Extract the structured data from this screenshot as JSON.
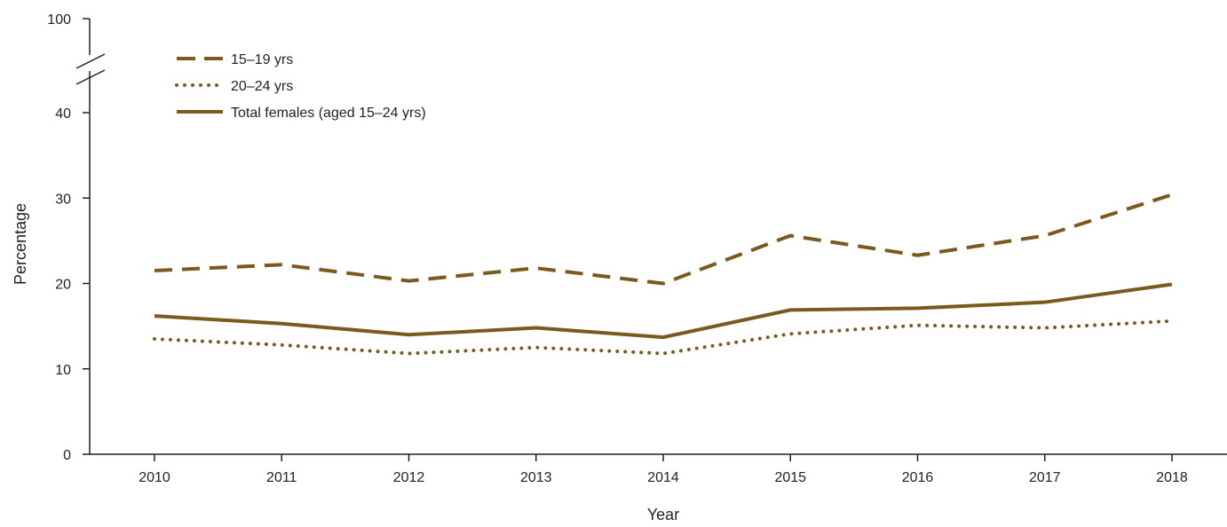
{
  "chart_data": {
    "type": "line",
    "title": "",
    "xlabel": "Year",
    "ylabel": "Percentage",
    "x": [
      2010,
      2011,
      2012,
      2013,
      2014,
      2015,
      2016,
      2017,
      2018
    ],
    "y_ticks": [
      0,
      10,
      20,
      30,
      40
    ],
    "y_break_tick": 100,
    "y_axis_break": true,
    "ylim": [
      0,
      100
    ],
    "legend_position": "top-left",
    "grid": false,
    "line_color": "#7b5a1e",
    "series": [
      {
        "name": "15–19 yrs",
        "style": "dashed",
        "values": [
          21.5,
          22.2,
          20.3,
          21.8,
          20.0,
          25.6,
          23.3,
          25.6,
          30.4
        ]
      },
      {
        "name": "20–24 yrs",
        "style": "dotted",
        "values": [
          13.5,
          12.8,
          11.8,
          12.5,
          11.8,
          14.1,
          15.1,
          14.8,
          15.6
        ]
      },
      {
        "name": "Total females (aged 15–24 yrs)",
        "style": "solid",
        "values": [
          16.2,
          15.3,
          14.0,
          14.8,
          13.7,
          16.9,
          17.1,
          17.8,
          19.9
        ]
      }
    ]
  }
}
